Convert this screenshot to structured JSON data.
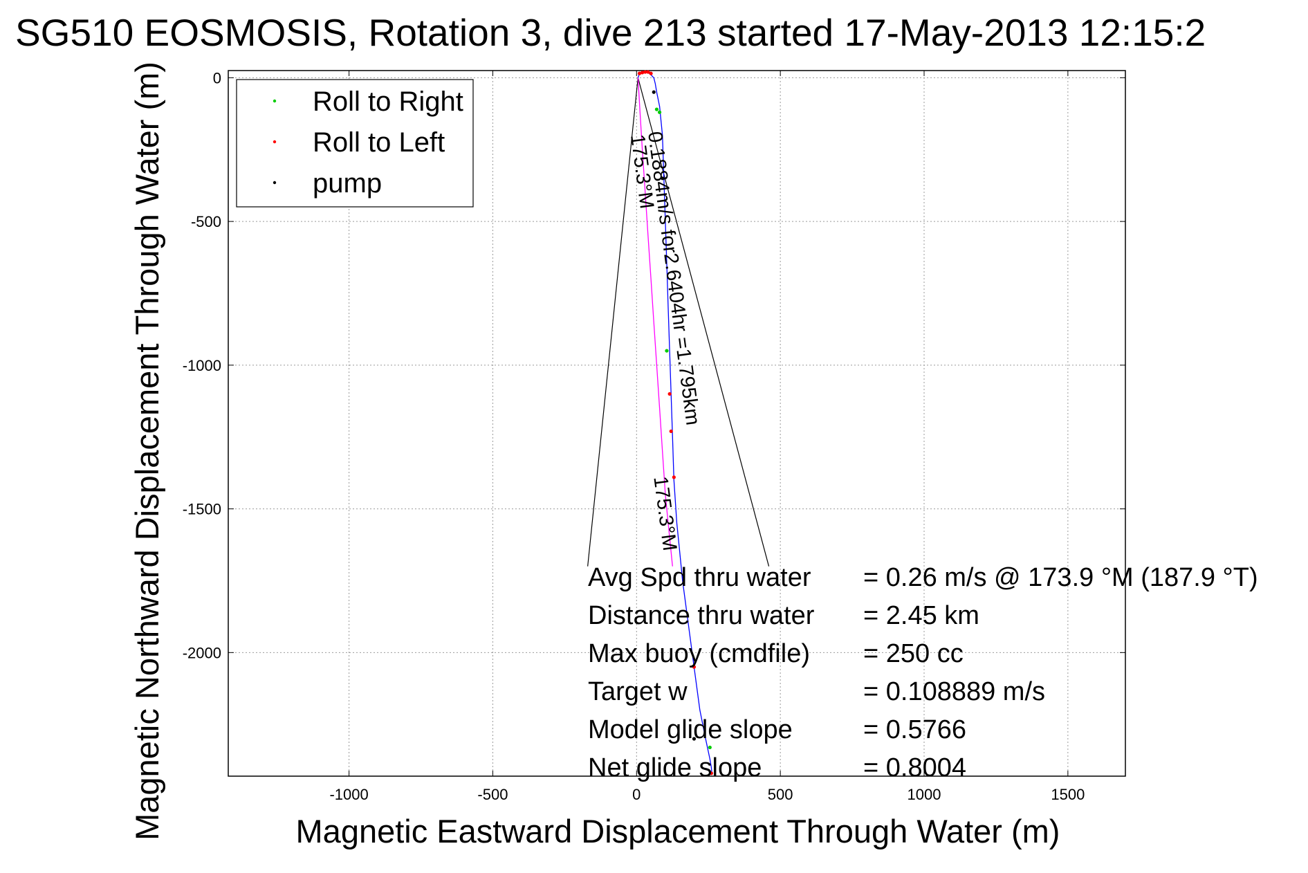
{
  "chart_data": {
    "type": "line",
    "title": "SG510 EOSMOSIS, Rotation 3, dive 213 started 17-May-2013 12:15:2",
    "xlabel": "Magnetic Eastward Displacement Through Water (m)",
    "ylabel": "Magnetic Northward Displacement Through Water (m)",
    "xlim": [
      -1420,
      1700
    ],
    "ylim": [
      -2430,
      25
    ],
    "xticks": [
      -1000,
      -500,
      0,
      500,
      1000,
      1500
    ],
    "yticks": [
      0,
      -500,
      -1000,
      -1500,
      -2000
    ],
    "grid": true,
    "legend": {
      "placement": "top-left",
      "entries": [
        {
          "label": "Roll to Right",
          "color": "#00cc00"
        },
        {
          "label": "Roll to Left",
          "color": "#ff0000"
        },
        {
          "label": "pump",
          "color": "#000000"
        }
      ]
    },
    "series": [
      {
        "color": "#0000ff",
        "x": [
          5,
          10,
          20,
          30,
          40,
          50,
          60,
          65,
          70,
          80,
          90,
          95,
          100,
          105,
          110,
          115,
          120,
          125,
          130,
          140,
          150,
          160,
          180,
          200,
          220,
          240,
          255,
          260,
          262
        ],
        "y": [
          0,
          15,
          20,
          20,
          18,
          10,
          0,
          -20,
          -50,
          -100,
          -200,
          -350,
          -500,
          -650,
          -800,
          -950,
          -1100,
          -1250,
          -1400,
          -1550,
          -1650,
          -1750,
          -1900,
          -2050,
          -2200,
          -2300,
          -2370,
          -2400,
          -2420
        ]
      },
      {
        "color": "#ff00ff",
        "x": [
          5,
          8,
          12,
          20,
          30,
          40,
          50,
          60,
          70,
          80,
          90,
          100,
          110,
          120,
          125
        ],
        "y": [
          0,
          -50,
          -120,
          -250,
          -400,
          -550,
          -700,
          -850,
          -1000,
          -1150,
          -1300,
          -1450,
          -1550,
          -1650,
          -1700
        ]
      }
    ],
    "markers": {
      "roll_right": {
        "x": [
          70,
          80,
          105,
          255
        ],
        "y": [
          -110,
          -120,
          -950,
          -2330
        ]
      },
      "roll_left": {
        "x": [
          10,
          20,
          30,
          40,
          50,
          115,
          120,
          130,
          200,
          260
        ],
        "y": [
          15,
          18,
          20,
          20,
          15,
          -1100,
          -1230,
          -1390,
          -2050,
          -2420
        ]
      },
      "pump": {
        "x": [
          60,
          90,
          200
        ],
        "y": [
          -50,
          -350,
          -2300
        ]
      }
    },
    "wedge_lines": [
      {
        "x": [
          5,
          -170
        ],
        "y": [
          0,
          -1700
        ]
      },
      {
        "x": [
          5,
          460
        ],
        "y": [
          0,
          -1700
        ]
      }
    ],
    "annotations": [
      {
        "text": "0.1884m/s for2.6404hr =1.795km",
        "x": 40,
        "y": -190,
        "rotation": 82.5
      },
      {
        "text": "175.3°M",
        "x": -20,
        "y": -200,
        "rotation": 82.5
      },
      {
        "text": "175.3°M",
        "x": 60,
        "y": -1390,
        "rotation": 82.5
      }
    ],
    "stats": [
      {
        "label": "Avg Spd thru water",
        "value": "=  0.26 m/s @ 173.9 °M (187.9 °T)"
      },
      {
        "label": "Distance thru water",
        "value": "=  2.45 km"
      },
      {
        "label": "Max buoy (cmdfile)",
        "value": "= 250 cc"
      },
      {
        "label": "Target w",
        "value": "= 0.108889 m/s"
      },
      {
        "label": "Model glide slope",
        "value": "= 0.5766"
      },
      {
        "label": "Net glide slope",
        "value": "= 0.8004"
      }
    ]
  }
}
